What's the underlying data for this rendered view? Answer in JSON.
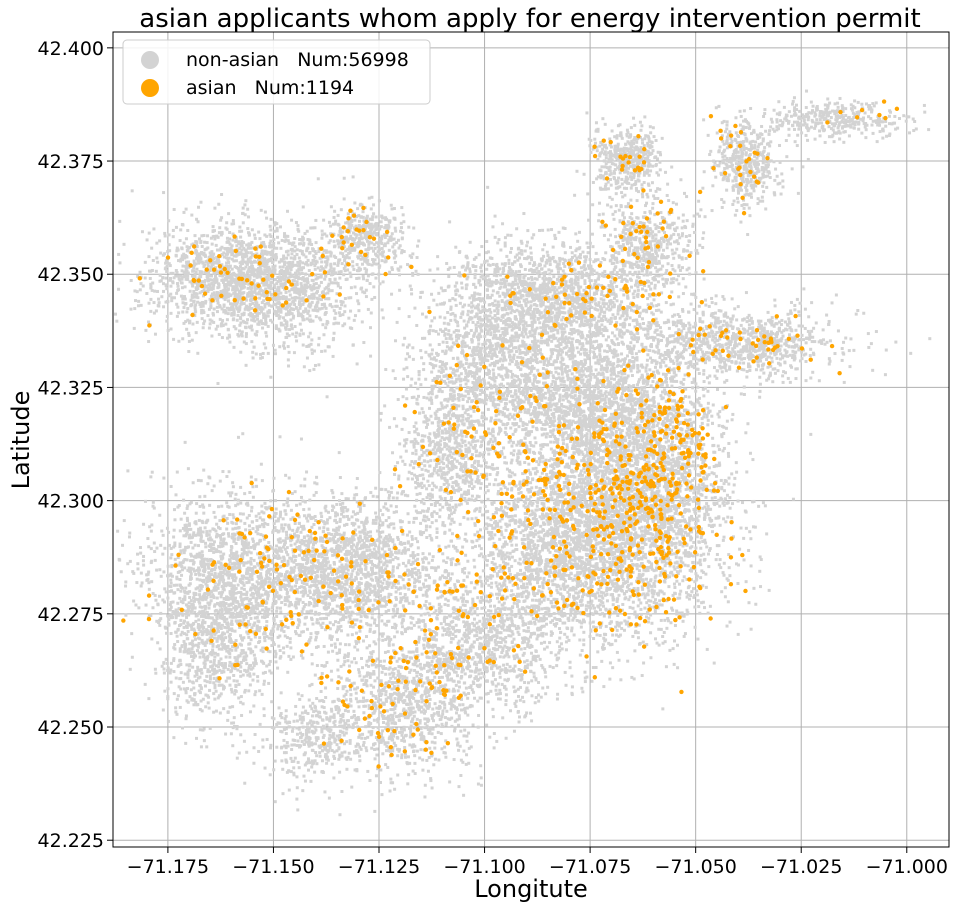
{
  "chart_data": {
    "type": "scatter",
    "title": "asian applicants whom apply for energy intervention permit",
    "xlabel": "Longitute",
    "ylabel": "Latitude",
    "xlim": [
      -71.188,
      -70.99
    ],
    "ylim": [
      42.2235,
      42.4035
    ],
    "x_ticks": [
      -71.175,
      -71.15,
      -71.125,
      -71.1,
      -71.075,
      -71.05,
      -71.025,
      -71.0
    ],
    "x_tick_labels": [
      "−71.175",
      "−71.150",
      "−71.125",
      "−71.100",
      "−71.075",
      "−71.050",
      "−71.025",
      "−71.000"
    ],
    "y_ticks": [
      42.225,
      42.25,
      42.275,
      42.3,
      42.325,
      42.35,
      42.375,
      42.4
    ],
    "y_tick_labels": [
      "42.225",
      "42.250",
      "42.275",
      "42.300",
      "42.325",
      "42.350",
      "42.375",
      "42.400"
    ],
    "grid": true,
    "legend_position": "top-left",
    "series": [
      {
        "name": "non-asian   Num:56998",
        "color": "#d3d3d3",
        "marker": "square",
        "clusters": [
          {
            "x": -71.16,
            "y": 42.349,
            "sx": 0.01,
            "sy": 0.006,
            "n": 1400
          },
          {
            "x": -71.145,
            "y": 42.347,
            "sx": 0.008,
            "sy": 0.007,
            "n": 700
          },
          {
            "x": -71.128,
            "y": 42.358,
            "sx": 0.005,
            "sy": 0.004,
            "n": 400
          },
          {
            "x": -71.066,
            "y": 42.375,
            "sx": 0.004,
            "sy": 0.004,
            "n": 450
          },
          {
            "x": -71.038,
            "y": 42.375,
            "sx": 0.004,
            "sy": 0.005,
            "n": 450
          },
          {
            "x": -71.017,
            "y": 42.384,
            "sx": 0.008,
            "sy": 0.002,
            "n": 350
          },
          {
            "x": -71.062,
            "y": 42.356,
            "sx": 0.006,
            "sy": 0.005,
            "n": 500
          },
          {
            "x": -71.085,
            "y": 42.345,
            "sx": 0.012,
            "sy": 0.006,
            "n": 1400
          },
          {
            "x": -71.04,
            "y": 42.335,
            "sx": 0.012,
            "sy": 0.004,
            "n": 900
          },
          {
            "x": -71.098,
            "y": 42.33,
            "sx": 0.01,
            "sy": 0.008,
            "n": 900
          },
          {
            "x": -71.075,
            "y": 42.322,
            "sx": 0.012,
            "sy": 0.01,
            "n": 2000
          },
          {
            "x": -71.108,
            "y": 42.31,
            "sx": 0.006,
            "sy": 0.01,
            "n": 800
          },
          {
            "x": -71.062,
            "y": 42.3,
            "sx": 0.01,
            "sy": 0.014,
            "n": 2800
          },
          {
            "x": -71.082,
            "y": 42.29,
            "sx": 0.01,
            "sy": 0.01,
            "n": 1800
          },
          {
            "x": -71.16,
            "y": 42.282,
            "sx": 0.01,
            "sy": 0.01,
            "n": 1600
          },
          {
            "x": -71.132,
            "y": 42.285,
            "sx": 0.01,
            "sy": 0.008,
            "n": 1600
          },
          {
            "x": -71.1,
            "y": 42.268,
            "sx": 0.01,
            "sy": 0.008,
            "n": 1000
          },
          {
            "x": -71.12,
            "y": 42.255,
            "sx": 0.009,
            "sy": 0.008,
            "n": 900
          },
          {
            "x": -71.14,
            "y": 42.248,
            "sx": 0.006,
            "sy": 0.005,
            "n": 350
          },
          {
            "x": -71.165,
            "y": 42.265,
            "sx": 0.006,
            "sy": 0.008,
            "n": 500
          }
        ]
      },
      {
        "name": "asian   Num:1194",
        "color": "#ffa500",
        "marker": "circle",
        "clusters": [
          {
            "x": -71.158,
            "y": 42.348,
            "sx": 0.01,
            "sy": 0.005,
            "n": 55
          },
          {
            "x": -71.13,
            "y": 42.358,
            "sx": 0.005,
            "sy": 0.004,
            "n": 25
          },
          {
            "x": -71.062,
            "y": 42.356,
            "sx": 0.005,
            "sy": 0.006,
            "n": 45
          },
          {
            "x": -71.066,
            "y": 42.376,
            "sx": 0.004,
            "sy": 0.004,
            "n": 20
          },
          {
            "x": -71.038,
            "y": 42.374,
            "sx": 0.004,
            "sy": 0.005,
            "n": 25
          },
          {
            "x": -71.078,
            "y": 42.345,
            "sx": 0.012,
            "sy": 0.005,
            "n": 50
          },
          {
            "x": -71.04,
            "y": 42.334,
            "sx": 0.01,
            "sy": 0.003,
            "n": 45
          },
          {
            "x": -71.058,
            "y": 42.316,
            "sx": 0.006,
            "sy": 0.008,
            "n": 90
          },
          {
            "x": -71.062,
            "y": 42.298,
            "sx": 0.01,
            "sy": 0.012,
            "n": 330
          },
          {
            "x": -71.085,
            "y": 42.31,
            "sx": 0.012,
            "sy": 0.012,
            "n": 110
          },
          {
            "x": -71.105,
            "y": 42.318,
            "sx": 0.008,
            "sy": 0.01,
            "n": 45
          },
          {
            "x": -71.145,
            "y": 42.283,
            "sx": 0.015,
            "sy": 0.01,
            "n": 120
          },
          {
            "x": -71.112,
            "y": 42.27,
            "sx": 0.01,
            "sy": 0.01,
            "n": 70
          },
          {
            "x": -71.122,
            "y": 42.255,
            "sx": 0.008,
            "sy": 0.008,
            "n": 45
          },
          {
            "x": -71.085,
            "y": 42.285,
            "sx": 0.01,
            "sy": 0.008,
            "n": 70
          },
          {
            "x": -71.01,
            "y": 42.386,
            "sx": 0.006,
            "sy": 0.002,
            "n": 8
          }
        ]
      }
    ]
  }
}
